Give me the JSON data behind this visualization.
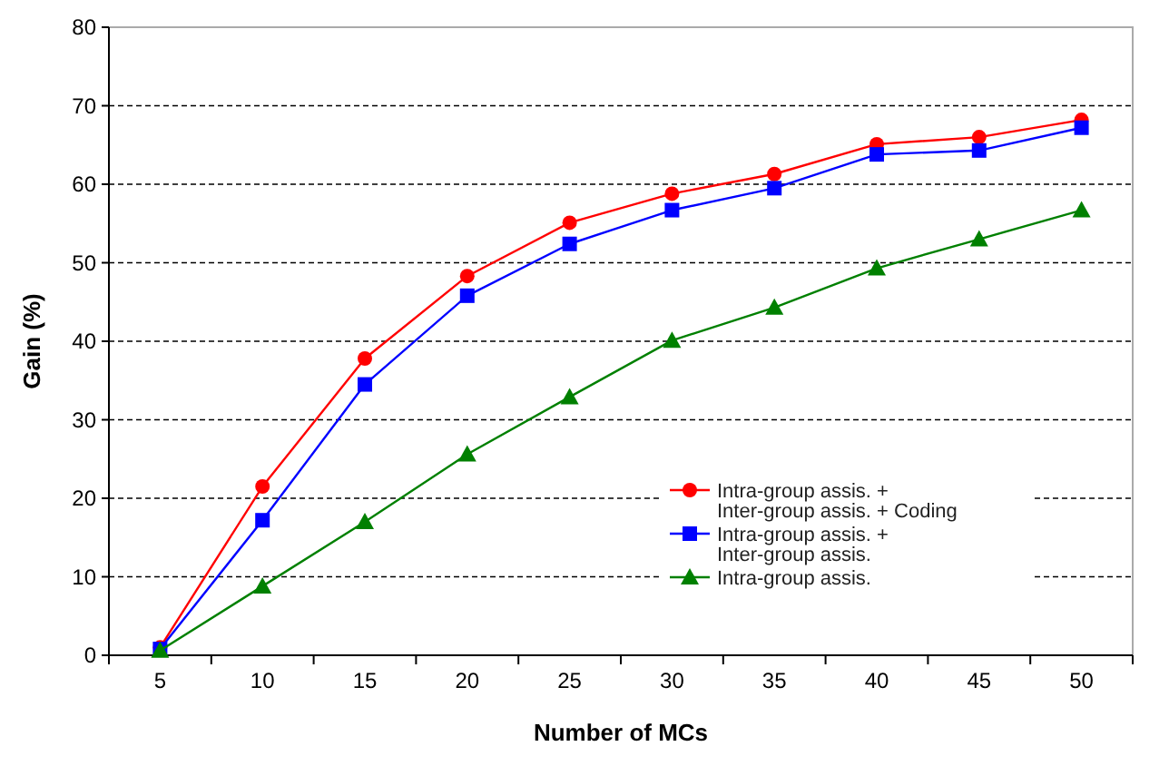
{
  "chart_data": {
    "type": "line",
    "xlabel": "Number of MCs",
    "ylabel": "Gain (%)",
    "categories": [
      "5",
      "10",
      "15",
      "20",
      "25",
      "30",
      "35",
      "40",
      "45",
      "50"
    ],
    "ylim": [
      0,
      80
    ],
    "yticks": [
      0,
      10,
      20,
      30,
      40,
      50,
      60,
      70,
      80
    ],
    "grid": "y",
    "legend": "bottom right",
    "series": [
      {
        "name": "Intra-group assis. + Inter-group assis. + Coding",
        "color": "#ff0000",
        "marker": "circle",
        "values": [
          1,
          21.5,
          37.8,
          48.3,
          55.1,
          58.8,
          61.3,
          65.1,
          66,
          68.2
        ]
      },
      {
        "name": "Intra-group assis. + Inter-group assis.",
        "color": "#0000ff",
        "marker": "square",
        "values": [
          0.8,
          17.2,
          34.5,
          45.8,
          52.4,
          56.7,
          59.5,
          63.8,
          64.3,
          67.2
        ]
      },
      {
        "name": "Intra-group assis.",
        "color": "#008000",
        "marker": "triangle",
        "values": [
          0.6,
          8.8,
          17,
          25.6,
          32.9,
          40.1,
          44.3,
          49.3,
          53,
          56.7
        ]
      }
    ]
  }
}
